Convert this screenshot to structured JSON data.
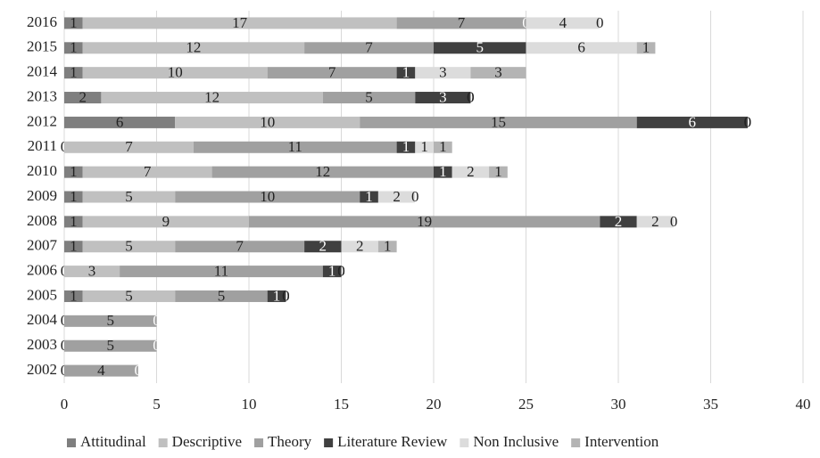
{
  "chart_data": {
    "type": "stacked-bar-horizontal",
    "categories": [
      "2016",
      "2015",
      "2014",
      "2013",
      "2012",
      "2011",
      "2010",
      "2009",
      "2008",
      "2007",
      "2006",
      "2005",
      "2004",
      "2003",
      "2002"
    ],
    "series": [
      {
        "name": "Attitudinal",
        "color": "#7f7f7f",
        "values": [
          1,
          1,
          1,
          2,
          6,
          0,
          1,
          1,
          1,
          1,
          0,
          1,
          0,
          0,
          0
        ]
      },
      {
        "name": "Descriptive",
        "color": "#c0c0c0",
        "values": [
          17,
          12,
          10,
          12,
          10,
          7,
          7,
          5,
          9,
          5,
          3,
          5,
          null,
          null,
          null
        ]
      },
      {
        "name": "Theory",
        "color": "#a0a0a0",
        "values": [
          7,
          7,
          7,
          5,
          15,
          11,
          12,
          10,
          19,
          7,
          11,
          5,
          5,
          5,
          4
        ]
      },
      {
        "name": "Literature Review",
        "color": "#404040",
        "values": [
          0,
          5,
          1,
          3,
          6,
          1,
          1,
          1,
          2,
          2,
          1,
          1,
          0,
          0,
          0
        ]
      },
      {
        "name": "Non Inclusive",
        "color": "#dcdcdc",
        "values": [
          4,
          6,
          3,
          0,
          0,
          1,
          2,
          2,
          2,
          2,
          0,
          0,
          null,
          null,
          null
        ]
      },
      {
        "name": "Intervention",
        "color": "#b4b4b4",
        "values": [
          0,
          1,
          3,
          0,
          0,
          1,
          1,
          0,
          0,
          1,
          0,
          0,
          null,
          null,
          null
        ]
      }
    ],
    "xlim": [
      0,
      40
    ],
    "xticks": [
      0,
      5,
      10,
      15,
      20,
      25,
      30,
      35,
      40
    ],
    "grid": true,
    "legend": "bottom"
  }
}
